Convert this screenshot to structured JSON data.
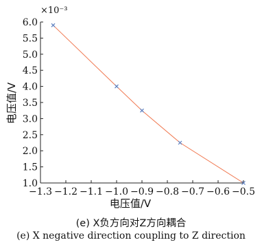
{
  "chart_data": {
    "type": "line",
    "x": [
      -1.25,
      -1.0,
      -0.9,
      -0.75,
      -0.5
    ],
    "series": [
      {
        "values": [
          5.9,
          4.0,
          3.25,
          2.25,
          1.0
        ]
      }
    ],
    "xlabel": "电压值/V",
    "ylabel": "电压值/V",
    "y_scale_label": "×10⁻³",
    "xlim": [
      -1.3,
      -0.5
    ],
    "ylim": [
      1.0,
      6.0
    ],
    "x_ticks": [
      "−1.3",
      "−1.2",
      "−1.1",
      "−1.0",
      "−0.9",
      "−0.8",
      "−0.7",
      "−0.6",
      "−0.5"
    ],
    "y_ticks": [
      "1.0",
      "1.5",
      "2.0",
      "2.5",
      "3.0",
      "3.5",
      "4.0",
      "4.5",
      "5.0",
      "5.5",
      "6.0"
    ],
    "grid": false,
    "colors": {
      "line": "#f07850",
      "marker": "#5b7fc0",
      "axis": "#222222"
    }
  },
  "caption": {
    "line1": "(e)  X负方向对Z方向耦合",
    "line2": "(e) X negative direction coupling to Z direction"
  }
}
